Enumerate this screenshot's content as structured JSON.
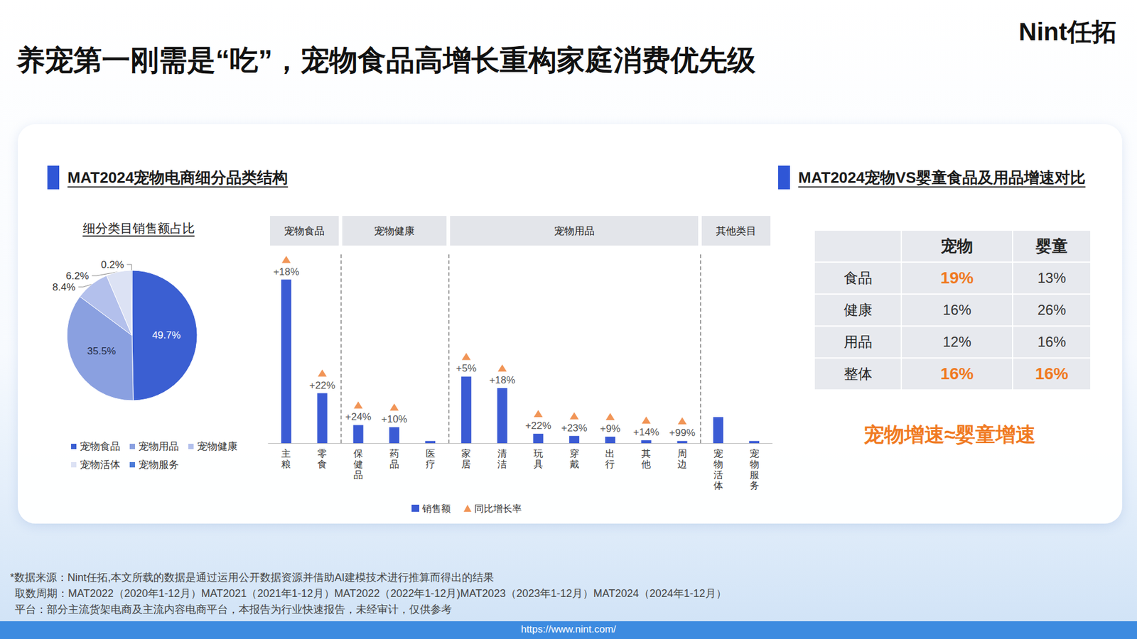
{
  "header": {
    "title": "养宠第一刚需是“吃”，宠物食品高增长重构家庭消费优先级",
    "logo": "Nint任拓"
  },
  "panels": {
    "left": "MAT2024宠物电商细分品类结构",
    "right": "MAT2024宠物VS婴童食品及用品增速对比"
  },
  "chart_data": [
    {
      "type": "pie",
      "title": "细分类目销售额占比",
      "categories": [
        "宠物食品",
        "宠物用品",
        "宠物健康",
        "宠物活体",
        "宠物服务"
      ],
      "values": [
        49.7,
        35.5,
        8.4,
        6.2,
        0.2
      ],
      "value_labels": [
        "49.7%",
        "35.5%",
        "8.4%",
        "6.2%",
        "0.2%"
      ],
      "colors": [
        "#3b5fd2",
        "#8aa0e0",
        "#b3c0ec",
        "#dce2f4",
        "#4d7cd8"
      ],
      "data_labels": true,
      "legend": "bottom"
    },
    {
      "type": "bar",
      "categories": [
        "主粮",
        "零食",
        "保健品",
        "药品",
        "医疗",
        "家居",
        "清洁",
        "玩具",
        "穿戴",
        "出行",
        "其他",
        "周边",
        "宠物活体",
        "宠物服务"
      ],
      "groups": [
        {
          "name": "宠物食品",
          "members": [
            "主粮",
            "零食"
          ]
        },
        {
          "name": "宠物健康",
          "members": [
            "保健品",
            "药品",
            "医疗"
          ]
        },
        {
          "name": "宠物用品",
          "members": [
            "家居",
            "清洁",
            "玩具",
            "穿戴",
            "出行",
            "其他",
            "周边"
          ]
        },
        {
          "name": "其他类目",
          "members": [
            "宠物活体",
            "宠物服务"
          ]
        }
      ],
      "series": [
        {
          "name": "销售额",
          "type": "bar",
          "color": "#3b5bd4",
          "values": [
            226,
            69,
            25,
            22,
            3,
            92,
            76,
            13,
            10,
            9,
            4,
            3,
            36,
            3
          ]
        },
        {
          "name": "同比增长率",
          "type": "scatter",
          "marker": "triangle",
          "color": "#ee7a2d",
          "values": [
            18,
            22,
            24,
            10,
            null,
            5,
            18,
            22,
            23,
            9,
            14,
            99,
            null,
            null
          ],
          "value_labels": [
            "+18%",
            "+22%",
            "+24%",
            "+10%",
            null,
            "+5%",
            "+18%",
            "+22%",
            "+23%",
            "+9%",
            "+14%",
            "+99%",
            null,
            null
          ]
        }
      ],
      "ylim": [
        0,
        260
      ],
      "tick_labels": "x",
      "grid": false,
      "legend": "bottom"
    }
  ],
  "table": {
    "header": [
      "宠物",
      "婴童"
    ],
    "rows": [
      {
        "label": "食品",
        "cells": [
          {
            "text": "19%",
            "highlight": true
          },
          {
            "text": "13%",
            "highlight": false
          }
        ]
      },
      {
        "label": "健康",
        "cells": [
          {
            "text": "16%",
            "highlight": false
          },
          {
            "text": "26%",
            "highlight": false
          }
        ]
      },
      {
        "label": "用品",
        "cells": [
          {
            "text": "12%",
            "highlight": false
          },
          {
            "text": "16%",
            "highlight": false
          }
        ]
      },
      {
        "label": "整体",
        "cells": [
          {
            "text": "16%",
            "highlight": true
          },
          {
            "text": "16%",
            "highlight": true
          }
        ]
      }
    ],
    "highlight_color": "#f07a22"
  },
  "conclusion": "宠物增速≈婴童增速",
  "footer": [
    "*数据来源：Nint任拓,本文所载的数据是通过运用公开数据资源并借助AI建模技术进行推算而得出的结果",
    "取数周期：MAT2022（2020年1-12月）MAT2021（2021年1-12月）MAT2022（2022年1-12月)MAT2023（2023年1-12月）MAT2024（2024年1-12月）",
    "平台：部分主流货架电商及主流内容电商平台，本报告为行业快速报告，未经审计，仅供参考"
  ],
  "url": "https://www.nint.com/"
}
